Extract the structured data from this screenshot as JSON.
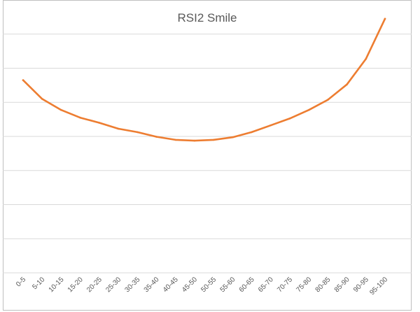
{
  "chart_data": {
    "type": "line",
    "title": "RSI2 Smile",
    "xlabel": "",
    "ylabel": "",
    "categories": [
      "0-5",
      "5-10",
      "10-15",
      "15-20",
      "20-25",
      "25-30",
      "30-35",
      "35-40",
      "40-45",
      "45-50",
      "50-55",
      "55-60",
      "60-65",
      "65-70",
      "70-75",
      "75-80",
      "80-85",
      "85-90",
      "90-95",
      "95-100"
    ],
    "series": [
      {
        "values": [
          5.3,
          4.2,
          3.55,
          3.1,
          2.8,
          2.45,
          2.25,
          1.98,
          1.8,
          1.75,
          1.8,
          1.95,
          2.25,
          2.65,
          3.05,
          3.55,
          4.15,
          5.05,
          6.55,
          8.9
        ]
      }
    ],
    "ylim": [
      -6,
      10
    ],
    "grid": true,
    "y_tick_labels_visible": false,
    "legend": "none",
    "colors": {
      "line": "#ed7d31",
      "grid": "#d9d9d9",
      "text": "#595959"
    }
  }
}
